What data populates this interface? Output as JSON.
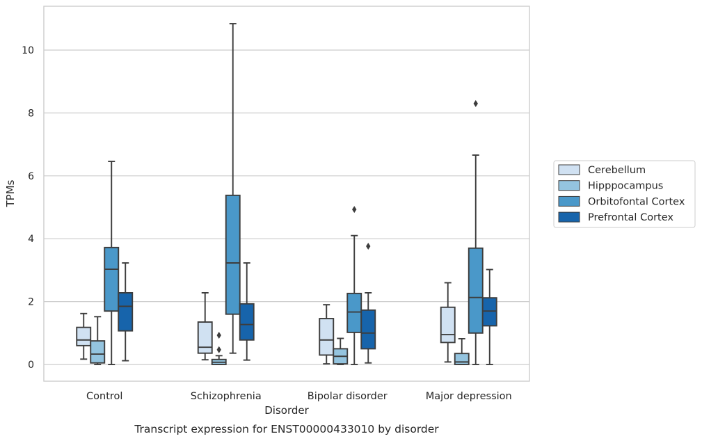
{
  "chart_data": {
    "type": "box",
    "caption": "Transcript expression for ENST00000433010 by disorder",
    "xlabel": "Disorder",
    "ylabel": "TPMs",
    "ylim": [
      -0.5,
      11.4
    ],
    "yticks": [
      0,
      2,
      4,
      6,
      8,
      10
    ],
    "grid": true,
    "legend_position": "right",
    "categories": [
      "Control",
      "Schizophrenia",
      "Bipolar disorder",
      "Major depression"
    ],
    "series": [
      {
        "name": "Cerebellum",
        "color": "#d0e1f2",
        "boxes": [
          {
            "whislo": 0.17,
            "q1": 0.6,
            "med": 0.78,
            "q3": 1.18,
            "whishi": 1.62,
            "fliers": []
          },
          {
            "whislo": 0.15,
            "q1": 0.36,
            "med": 0.55,
            "q3": 1.35,
            "whishi": 2.28,
            "fliers": []
          },
          {
            "whislo": 0.02,
            "q1": 0.3,
            "med": 0.78,
            "q3": 1.46,
            "whishi": 1.9,
            "fliers": []
          },
          {
            "whislo": 0.08,
            "q1": 0.7,
            "med": 0.95,
            "q3": 1.82,
            "whishi": 2.6,
            "fliers": []
          }
        ]
      },
      {
        "name": "Hipppocampus",
        "color": "#94c4df",
        "boxes": [
          {
            "whislo": 0.0,
            "q1": 0.05,
            "med": 0.33,
            "q3": 0.75,
            "whishi": 1.52,
            "fliers": []
          },
          {
            "whislo": 0.0,
            "q1": 0.0,
            "med": 0.07,
            "q3": 0.16,
            "whishi": 0.28,
            "fliers": [
              0.47,
              0.93
            ]
          },
          {
            "whislo": 0.0,
            "q1": 0.02,
            "med": 0.26,
            "q3": 0.5,
            "whishi": 0.83,
            "fliers": []
          },
          {
            "whislo": 0.0,
            "q1": 0.0,
            "med": 0.08,
            "q3": 0.35,
            "whishi": 0.82,
            "fliers": []
          }
        ]
      },
      {
        "name": "Orbitofontal Cortex",
        "color": "#4a98c9",
        "boxes": [
          {
            "whislo": 0.0,
            "q1": 1.7,
            "med": 3.03,
            "q3": 3.72,
            "whishi": 6.46,
            "fliers": []
          },
          {
            "whislo": 0.36,
            "q1": 1.6,
            "med": 3.23,
            "q3": 5.38,
            "whishi": 10.84,
            "fliers": []
          },
          {
            "whislo": 0.0,
            "q1": 1.02,
            "med": 1.67,
            "q3": 2.26,
            "whishi": 4.1,
            "fliers": [
              4.93
            ]
          },
          {
            "whislo": 0.0,
            "q1": 1.0,
            "med": 2.13,
            "q3": 3.7,
            "whishi": 6.66,
            "fliers": [
              8.3
            ]
          }
        ]
      },
      {
        "name": "Prefrontal Cortex",
        "color": "#1764ab",
        "boxes": [
          {
            "whislo": 0.12,
            "q1": 1.07,
            "med": 1.85,
            "q3": 2.28,
            "whishi": 3.23,
            "fliers": []
          },
          {
            "whislo": 0.14,
            "q1": 0.78,
            "med": 1.27,
            "q3": 1.93,
            "whishi": 3.23,
            "fliers": []
          },
          {
            "whislo": 0.05,
            "q1": 0.5,
            "med": 1.0,
            "q3": 1.73,
            "whishi": 2.28,
            "fliers": [
              3.76
            ]
          },
          {
            "whislo": 0.0,
            "q1": 1.23,
            "med": 1.7,
            "q3": 2.12,
            "whishi": 3.02,
            "fliers": []
          }
        ]
      }
    ]
  }
}
